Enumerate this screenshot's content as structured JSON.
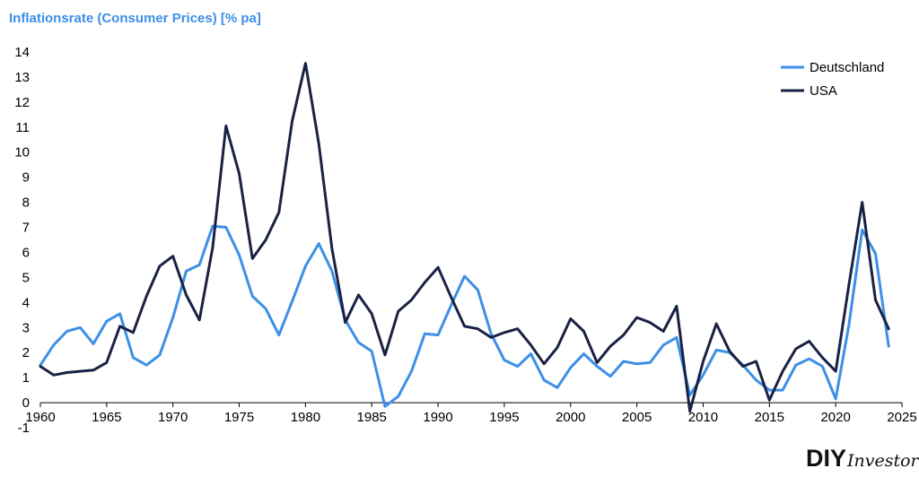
{
  "title": "Inflationsrate (Consumer Prices) [% pa]",
  "logo": {
    "part1": "DIY",
    "part2": "Investor"
  },
  "chart_data": {
    "type": "line",
    "title": "Inflationsrate (Consumer Prices) [% pa]",
    "xlabel": "",
    "ylabel": "",
    "xlim": [
      1960,
      2025
    ],
    "ylim": [
      -1,
      14
    ],
    "x_ticks": [
      1960,
      1965,
      1970,
      1975,
      1980,
      1985,
      1990,
      1995,
      2000,
      2005,
      2010,
      2015,
      2020,
      2025
    ],
    "y_ticks": [
      -1,
      0,
      1,
      2,
      3,
      4,
      5,
      6,
      7,
      8,
      9,
      10,
      11,
      12,
      13,
      14
    ],
    "grid": false,
    "legend_position": "top-right",
    "x": [
      1960,
      1961,
      1962,
      1963,
      1964,
      1965,
      1966,
      1967,
      1968,
      1969,
      1970,
      1971,
      1972,
      1973,
      1974,
      1975,
      1976,
      1977,
      1978,
      1979,
      1980,
      1981,
      1982,
      1983,
      1984,
      1985,
      1986,
      1987,
      1988,
      1989,
      1990,
      1991,
      1992,
      1993,
      1994,
      1995,
      1996,
      1997,
      1998,
      1999,
      2000,
      2001,
      2002,
      2003,
      2004,
      2005,
      2006,
      2007,
      2008,
      2009,
      2010,
      2011,
      2012,
      2013,
      2014,
      2015,
      2016,
      2017,
      2018,
      2019,
      2020,
      2021,
      2022,
      2023,
      2024
    ],
    "series": [
      {
        "name": "Deutschland",
        "color": "#3d8fe8",
        "values": [
          1.5,
          2.3,
          2.85,
          3.0,
          2.35,
          3.25,
          3.55,
          1.8,
          1.5,
          1.9,
          3.4,
          5.25,
          5.5,
          7.05,
          7.0,
          5.9,
          4.25,
          3.75,
          2.7,
          4.05,
          5.45,
          6.35,
          5.25,
          3.3,
          2.4,
          2.05,
          -0.15,
          0.25,
          1.25,
          2.75,
          2.7,
          3.9,
          5.05,
          4.5,
          2.75,
          1.7,
          1.45,
          1.95,
          0.9,
          0.6,
          1.4,
          1.95,
          1.45,
          1.05,
          1.65,
          1.55,
          1.6,
          2.3,
          2.6,
          0.3,
          1.1,
          2.1,
          2.0,
          1.5,
          0.9,
          0.5,
          0.5,
          1.5,
          1.75,
          1.45,
          0.15,
          3.1,
          6.9,
          5.95,
          2.25
        ]
      },
      {
        "name": "USA",
        "color": "#1a2244",
        "values": [
          1.45,
          1.1,
          1.2,
          1.25,
          1.3,
          1.6,
          3.05,
          2.8,
          4.25,
          5.45,
          5.85,
          4.3,
          3.3,
          6.2,
          11.05,
          9.15,
          5.75,
          6.5,
          7.6,
          11.25,
          13.55,
          10.35,
          6.15,
          3.2,
          4.3,
          3.55,
          1.9,
          3.65,
          4.1,
          4.8,
          5.4,
          4.2,
          3.05,
          2.95,
          2.6,
          2.8,
          2.95,
          2.3,
          1.55,
          2.2,
          3.35,
          2.85,
          1.6,
          2.25,
          2.7,
          3.4,
          3.2,
          2.85,
          3.85,
          -0.35,
          1.65,
          3.15,
          2.05,
          1.45,
          1.65,
          0.1,
          1.25,
          2.15,
          2.45,
          1.8,
          1.25,
          4.7,
          8.0,
          4.1,
          2.95
        ]
      }
    ]
  }
}
